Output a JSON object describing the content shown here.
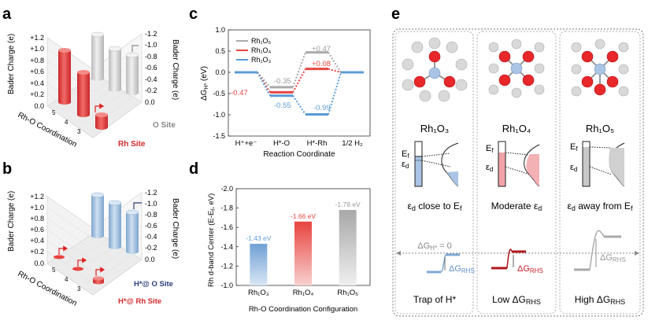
{
  "panel_labels": {
    "a": "a",
    "b": "b",
    "c": "c",
    "d": "d",
    "e": "e"
  },
  "colors": {
    "red": "#e8443f",
    "gray": "#b8b8b8",
    "blue": "#8db3d8",
    "darkred": "#b0171f",
    "lightblue": "#7fa9d6",
    "pink": "#f09aa0"
  },
  "panel_a": {
    "left_axis": "Bader Charge (e)",
    "right_axis": "Bader Charge (e)",
    "left_ticks": [
      "+1.2",
      "+1.0",
      "+0.8",
      "+0.6",
      "+0.4",
      "+0.2",
      "0.0"
    ],
    "right_ticks": [
      "-1.2",
      "-1.0",
      "-0.8",
      "-0.6",
      "-0.4",
      "-0.2",
      "0.0"
    ],
    "depth_axis": "Rh-O Coordination",
    "depth_ticks": [
      "5",
      "4",
      "3"
    ],
    "site_o": "O Site",
    "site_rh": "Rh Site"
  },
  "panel_b": {
    "left_axis": "Bader Charge (e)",
    "right_axis": "Bader Charge (e)",
    "left_ticks": [
      "+1.2",
      "+1.0",
      "+0.8",
      "+0.6",
      "+0.4",
      "+0.2",
      "0.0"
    ],
    "right_ticks": [
      "-1.2",
      "-1.0",
      "-0.8",
      "-0.6",
      "-0.4",
      "-0.2",
      "0.0"
    ],
    "depth_axis": "Rh-O Coordination",
    "depth_ticks": [
      "5",
      "4",
      "3"
    ],
    "site_o": "H*@ O Site",
    "site_rh": "H*@ Rh Site"
  },
  "chart_data": [
    {
      "id": "c",
      "type": "line",
      "xlabel": "Reaction Coordinate",
      "ylabel": "ΔG_H* (eV)",
      "ylim": [
        -1.5,
        1.0
      ],
      "yticks": [
        "1.0",
        "0.5",
        "0.0",
        "-0.5",
        "-1.0",
        "-1.5"
      ],
      "categories": [
        "H⁺+e⁻",
        "H*-O",
        "H*-Rh",
        "1/2 H₂"
      ],
      "series": [
        {
          "name": "Rh₁O₅",
          "color": "#aaaaaa",
          "values": [
            0.0,
            -0.35,
            0.47,
            0.0
          ]
        },
        {
          "name": "Rh₁O₄",
          "color": "#e8443f",
          "values": [
            0.0,
            -0.47,
            0.08,
            0.0
          ]
        },
        {
          "name": "Rh₁O₃",
          "color": "#5b9bd5",
          "values": [
            0.0,
            -0.55,
            -0.99,
            0.0
          ]
        }
      ],
      "labels": {
        "r5_o": "-0.35",
        "r4_o": "-0.47",
        "r3_o": "-0.55",
        "r5_rh": "+0.47",
        "r4_rh": "+0.08",
        "r3_rh": "-0.99"
      }
    },
    {
      "id": "d",
      "type": "bar",
      "xlabel": "Rh-O Coordination Configuration",
      "ylabel": "Rh d-band Center (E-E_f, eV)",
      "ylim": [
        -1.0,
        -2.0
      ],
      "yticks": [
        "-2.0",
        "-1.8",
        "-1.6",
        "-1.4",
        "-1.2",
        "-1.0"
      ],
      "categories": [
        "Rh₁O₃",
        "Rh₁O₄",
        "Rh₁O₅"
      ],
      "values": [
        -1.43,
        -1.66,
        -1.78
      ],
      "value_labels": [
        "-1.43 eV",
        "-1.66 eV",
        "-1.78 eV"
      ]
    }
  ],
  "panel_e": {
    "columns": [
      {
        "formula": "Rh₁O₃",
        "band_caption": "ε_d close to E_f",
        "dg_caption": "Trap of H*"
      },
      {
        "formula": "Rh₁O₄",
        "band_caption": "Moderate ε_d",
        "dg_caption": "Low ΔG_RHS"
      },
      {
        "formula": "Rh₁O₅",
        "band_caption": "ε_d away from E_f",
        "dg_caption": "High ΔG_RHS"
      }
    ],
    "ef": "E_f",
    "ed": "ε_d",
    "dgh_zero": "ΔG_H* = 0",
    "dg_rhs": "ΔG_RHS"
  }
}
